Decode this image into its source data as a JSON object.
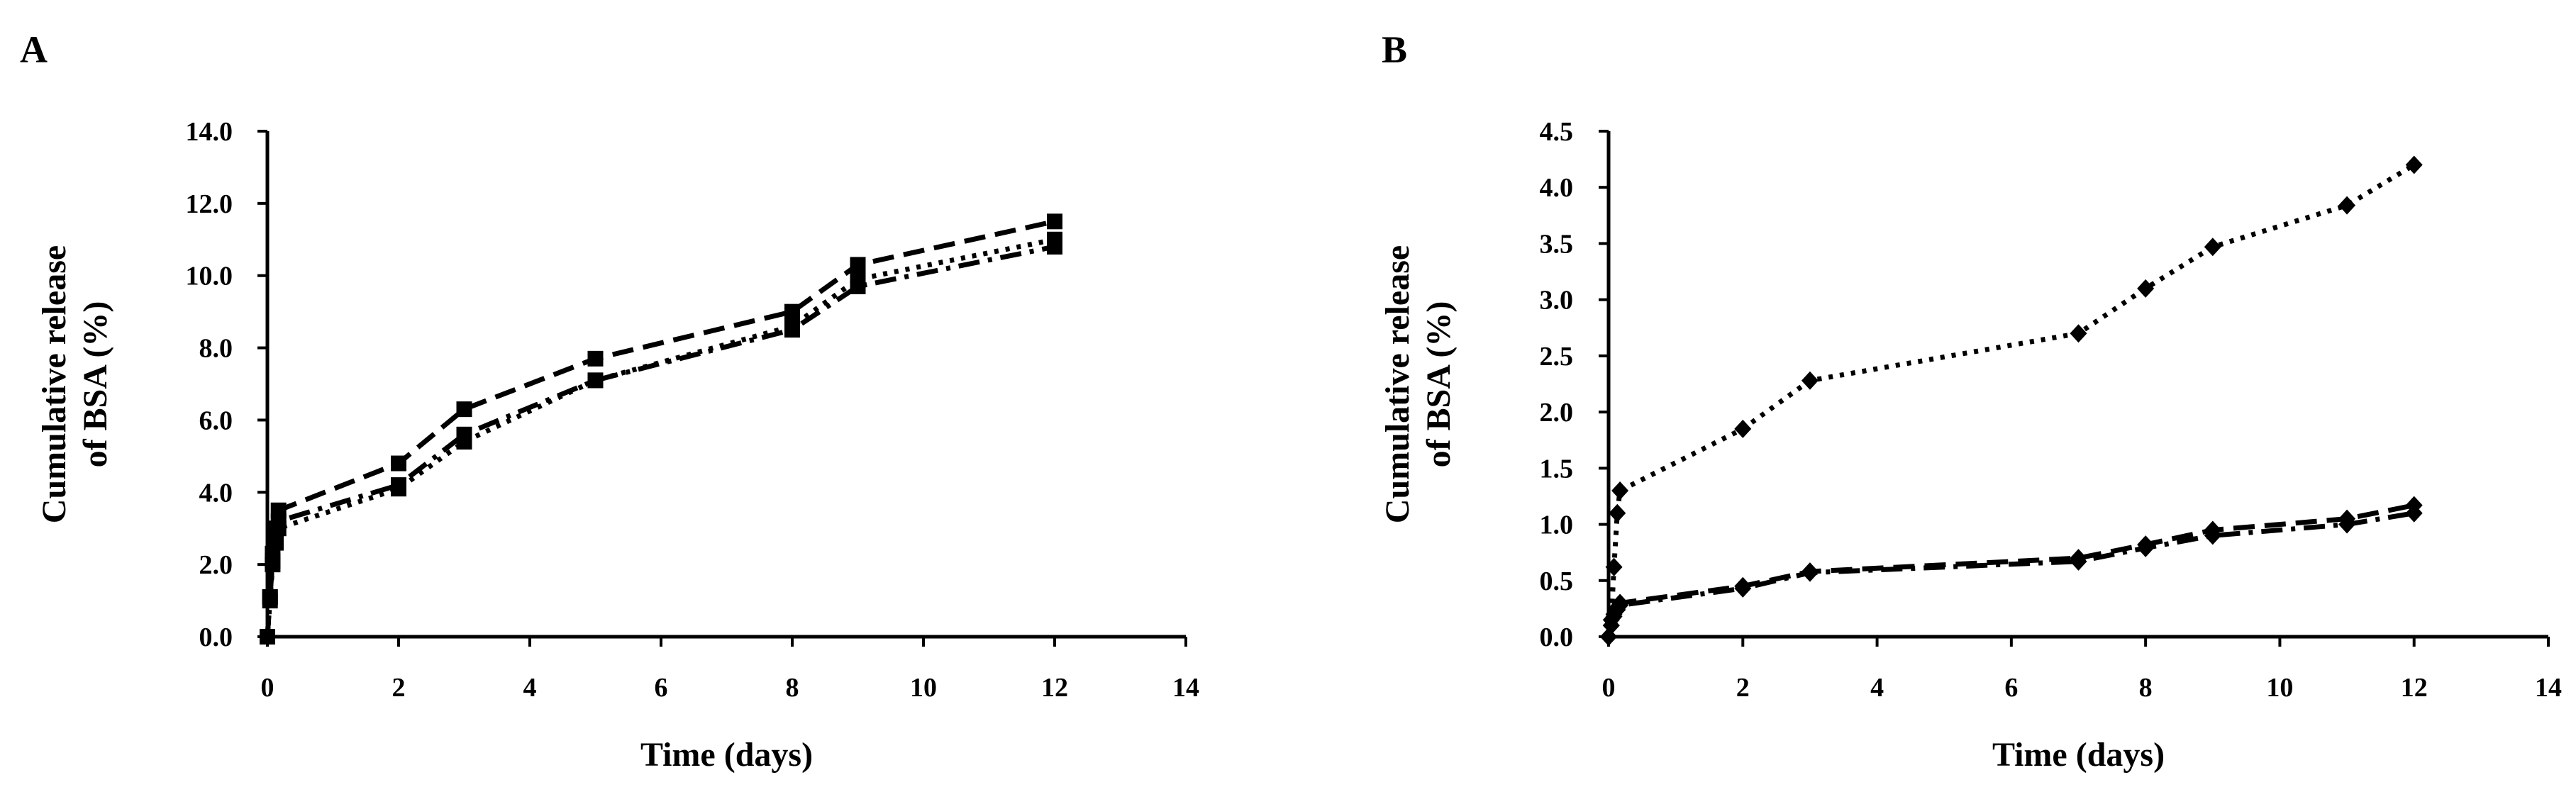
{
  "figure": {
    "panels": [
      "A",
      "B"
    ]
  },
  "chart_data": [
    {
      "panel_label": "A",
      "type": "line",
      "title": "",
      "xlabel": "Time (days)",
      "ylabel_lines": [
        "Cumulative release",
        "of BSA (%)"
      ],
      "xlim": [
        0,
        14
      ],
      "ylim": [
        0,
        14
      ],
      "x_ticks": [
        0,
        2,
        4,
        6,
        8,
        10,
        12,
        14
      ],
      "y_ticks": [
        0,
        2,
        4,
        6,
        8,
        10,
        12,
        14
      ],
      "y_tick_labels": [
        "0.0",
        "2.0",
        "4.0",
        "6.0",
        "8.0",
        "10.0",
        "12.0",
        "14.0"
      ],
      "grid": false,
      "legend": "none",
      "series": [
        {
          "name": "dashed",
          "style": "dashed",
          "marker": "square",
          "x": [
            0,
            0.04,
            0.08,
            0.13,
            0.17,
            2,
            3,
            5,
            8,
            9,
            12
          ],
          "y": [
            0,
            1.1,
            2.3,
            3.0,
            3.5,
            4.8,
            6.3,
            7.7,
            9.0,
            10.3,
            11.5
          ]
        },
        {
          "name": "dotted",
          "style": "dotted",
          "marker": "square",
          "x": [
            0,
            0.04,
            0.08,
            0.13,
            0.17,
            2,
            3,
            5,
            8,
            9,
            12
          ],
          "y": [
            0,
            1.0,
            2.0,
            2.6,
            3.0,
            4.1,
            5.4,
            7.1,
            8.6,
            9.9,
            11.0
          ]
        },
        {
          "name": "dash-dot",
          "style": "dashdot",
          "marker": "square",
          "x": [
            0,
            0.04,
            0.08,
            0.13,
            0.17,
            2,
            3,
            5,
            8,
            9,
            12
          ],
          "y": [
            0,
            1.1,
            2.1,
            2.8,
            3.2,
            4.2,
            5.6,
            7.1,
            8.5,
            9.7,
            10.8
          ]
        }
      ]
    },
    {
      "panel_label": "B",
      "type": "line",
      "title": "",
      "xlabel": "Time (days)",
      "ylabel_lines": [
        "Cumulative release",
        "of BSA (%)"
      ],
      "xlim": [
        0,
        14
      ],
      "ylim": [
        0,
        4.5
      ],
      "x_ticks": [
        0,
        2,
        4,
        6,
        8,
        10,
        12,
        14
      ],
      "y_ticks": [
        0,
        0.5,
        1,
        1.5,
        2,
        2.5,
        3,
        3.5,
        4,
        4.5
      ],
      "y_tick_labels": [
        "0.0",
        "0.5",
        "1.0",
        "1.5",
        "2.0",
        "2.5",
        "3.0",
        "3.5",
        "4.0",
        "4.5"
      ],
      "grid": false,
      "legend": "none",
      "series": [
        {
          "name": "dotted",
          "style": "dotted",
          "marker": "diamond",
          "x": [
            0,
            0.04,
            0.08,
            0.13,
            0.17,
            2,
            3,
            7,
            8,
            9,
            11,
            12
          ],
          "y": [
            0,
            0.15,
            0.62,
            1.1,
            1.3,
            1.85,
            2.28,
            2.7,
            3.1,
            3.47,
            3.84,
            4.2
          ]
        },
        {
          "name": "dashed",
          "style": "dashed",
          "marker": "diamond",
          "x": [
            0,
            0.04,
            0.08,
            0.13,
            0.17,
            2,
            3,
            7,
            8,
            9,
            11,
            12
          ],
          "y": [
            0,
            0.1,
            0.2,
            0.26,
            0.3,
            0.45,
            0.58,
            0.7,
            0.82,
            0.95,
            1.05,
            1.17
          ]
        },
        {
          "name": "dash-dot",
          "style": "dashdot",
          "marker": "diamond",
          "x": [
            0,
            0.04,
            0.08,
            0.13,
            0.17,
            2,
            3,
            7,
            8,
            9,
            11,
            12
          ],
          "y": [
            0,
            0.1,
            0.18,
            0.24,
            0.28,
            0.43,
            0.57,
            0.67,
            0.79,
            0.9,
            1.0,
            1.1
          ]
        }
      ]
    }
  ]
}
